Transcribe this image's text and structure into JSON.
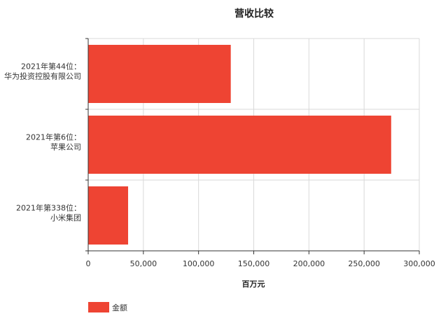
{
  "chart_data": {
    "type": "bar",
    "orientation": "horizontal",
    "title": "营收比较",
    "xlabel": "百万元",
    "ylabel": "",
    "xlim": [
      0,
      300000
    ],
    "xticks": [
      0,
      50000,
      100000,
      150000,
      200000,
      250000,
      300000
    ],
    "xtick_labels": [
      "0",
      "50,000",
      "100,000",
      "150,000",
      "200,000",
      "250,000",
      "300,000"
    ],
    "categories": [
      [
        "2021年第44位：",
        "华为投资控股有限公司"
      ],
      [
        "2021年第6位：",
        "苹果公司"
      ],
      [
        "2021年第338位：",
        "小米集团"
      ]
    ],
    "series": [
      {
        "name": "金额",
        "values": [
          129184,
          274515,
          36158
        ],
        "color": "#ee4433"
      }
    ],
    "grid": true,
    "legend": "bottom-left"
  }
}
